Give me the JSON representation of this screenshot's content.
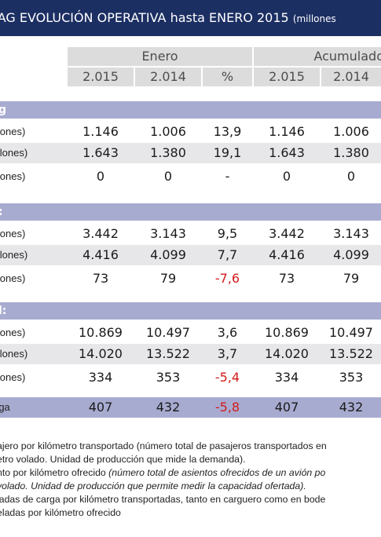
{
  "title": {
    "main": "IAG EVOLUCIÓN OPERATIVA hasta ENERO 2015",
    "sub": "(millones"
  },
  "header": {
    "group1": "Enero",
    "group2": "Acumulado",
    "columns": [
      "2.015",
      "2.014",
      "%",
      "2.015",
      "2.014"
    ]
  },
  "sections": [
    {
      "label": "g",
      "rows": [
        {
          "label": "llones)",
          "values": [
            "1.146",
            "1.006",
            "13,9",
            "1.146",
            "1.006"
          ],
          "neg": false
        },
        {
          "label": "illones)",
          "values": [
            "1.643",
            "1.380",
            "19,1",
            "1.643",
            "1.380"
          ],
          "neg": false
        },
        {
          "label": "llones)",
          "values": [
            "0",
            "0",
            "-",
            "0",
            "0"
          ],
          "neg": false
        }
      ]
    },
    {
      "label": ":",
      "rows": [
        {
          "label": "llones)",
          "values": [
            "3.442",
            "3.143",
            "9,5",
            "3.442",
            "3.143"
          ],
          "neg": false
        },
        {
          "label": "illones)",
          "values": [
            "4.416",
            "4.099",
            "7,7",
            "4.416",
            "4.099"
          ],
          "neg": false
        },
        {
          "label": "llones)",
          "values": [
            "73",
            "79",
            "-7,6",
            "73",
            "79"
          ],
          "neg": true
        }
      ]
    },
    {
      "label": "l:",
      "rows": [
        {
          "label": "llones)",
          "values": [
            "10.869",
            "10.497",
            "3,6",
            "10.869",
            "10.497"
          ],
          "neg": false
        },
        {
          "label": "illones)",
          "values": [
            "14.020",
            "13.522",
            "3,7",
            "14.020",
            "13.522"
          ],
          "neg": false
        },
        {
          "label": "llones)",
          "values": [
            "334",
            "353",
            "-5,4",
            "334",
            "353"
          ],
          "neg": true
        }
      ]
    }
  ],
  "cargo": {
    "label": "rga",
    "values": [
      "407",
      "432",
      "-5,8",
      "407",
      "432"
    ],
    "neg": true
  },
  "notes": [
    {
      "text": "ajero por kilómetro transportado (número total de pasajeros transportados en",
      "italic": ""
    },
    {
      "text": "etro volado. Unidad de producción que mide la demanda).",
      "italic": ""
    },
    {
      "text": "nto por kilómetro ofrecido ",
      "italic": "(número total de asientos ofrecidos de un avión po"
    },
    {
      "text": "",
      "italic": "volado. Unidad de producción que permite medir la capacidad ofertada)."
    },
    {
      "text": "ladas de carga por kilómetro transportadas, tanto en carguero como en bode",
      "italic": ""
    },
    {
      "text": "eladas por kilómetro ofrecido",
      "italic": ""
    }
  ]
}
